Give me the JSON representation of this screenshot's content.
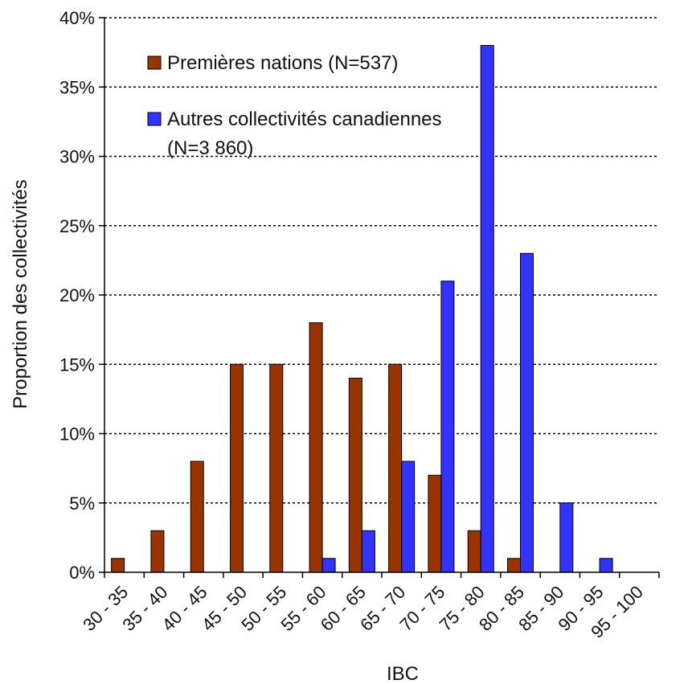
{
  "chart_data": {
    "type": "bar",
    "title": "",
    "xlabel": "IBC",
    "ylabel": "Proportion des collectivités",
    "ylim": [
      0,
      40
    ],
    "yticks": [
      0,
      5,
      10,
      15,
      20,
      25,
      30,
      35,
      40
    ],
    "ytick_suffix": "%",
    "grid": "horizontal-dotted",
    "legend_position": "top-left",
    "categories": [
      "30 - 35",
      "35 - 40",
      "40 - 45",
      "45 - 50",
      "50 - 55",
      "55 - 60",
      "60 - 65",
      "65 - 70",
      "70 - 75",
      "75 - 80",
      "80 - 85",
      "85 - 90",
      "90 - 95",
      "95 - 100"
    ],
    "series": [
      {
        "name": "Premières nations (N=537)",
        "color": "#993300",
        "values": [
          1,
          3,
          8,
          15,
          15,
          18,
          14,
          15,
          7,
          3,
          1,
          0,
          0,
          0
        ]
      },
      {
        "name": "Autres collectivités canadiennes (N=3 860)",
        "name_lines": [
          "Autres collectivités canadiennes",
          "(N=3 860)"
        ],
        "color": "#3333ff",
        "values": [
          0,
          0,
          0,
          0,
          0,
          1,
          3,
          8,
          21,
          38,
          23,
          5,
          1,
          0
        ]
      }
    ]
  }
}
